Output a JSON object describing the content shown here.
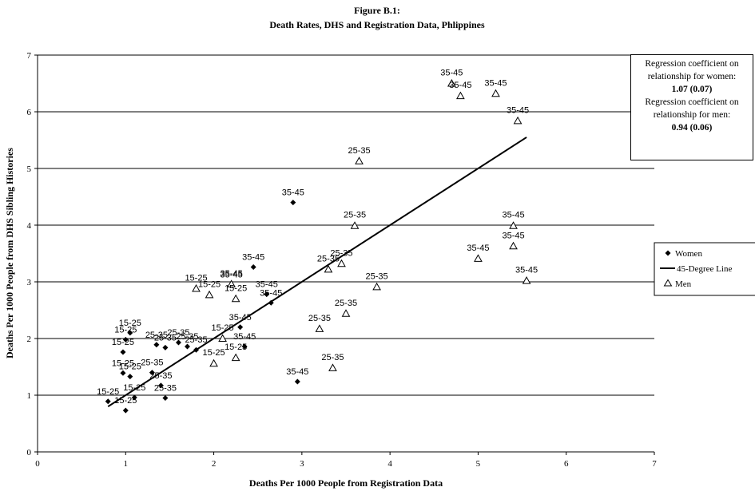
{
  "chart_data": {
    "type": "scatter",
    "title": "Figure B.1:",
    "subtitle": "Death Rates, DHS and Registration Data, Phlippines",
    "xlabel": "Deaths Per 1000 People from Registration Data",
    "ylabel": "Deaths Per 1000 People from DHS Sibling Histories",
    "xlim": [
      0,
      7
    ],
    "ylim": [
      0,
      7
    ],
    "xticks": [
      "0",
      "1",
      "2",
      "3",
      "4",
      "5",
      "6",
      "7"
    ],
    "yticks": [
      "0",
      "1",
      "2",
      "3",
      "4",
      "5",
      "6",
      "7"
    ],
    "grid": "horizontal",
    "legend_position": "right",
    "series": [
      {
        "name": "Women",
        "marker": "diamond",
        "color": "#000000",
        "points": [
          {
            "x": 0.8,
            "y": 0.89,
            "label": "15-25"
          },
          {
            "x": 1.0,
            "y": 0.73,
            "label": "15-25"
          },
          {
            "x": 1.1,
            "y": 0.96,
            "label": "15-25"
          },
          {
            "x": 0.97,
            "y": 1.39,
            "label": "15-25"
          },
          {
            "x": 1.05,
            "y": 1.33,
            "label": "15-25"
          },
          {
            "x": 0.97,
            "y": 1.76,
            "label": "15-25"
          },
          {
            "x": 1.0,
            "y": 1.98,
            "label": "15-25"
          },
          {
            "x": 1.05,
            "y": 2.1,
            "label": "15-25"
          },
          {
            "x": 1.3,
            "y": 1.4,
            "label": "25-35"
          },
          {
            "x": 1.4,
            "y": 1.17,
            "label": "25-35"
          },
          {
            "x": 1.45,
            "y": 0.95,
            "label": "25-35"
          },
          {
            "x": 1.35,
            "y": 1.89,
            "label": "25-35"
          },
          {
            "x": 1.45,
            "y": 1.84,
            "label": "25-35"
          },
          {
            "x": 1.6,
            "y": 1.93,
            "label": "25-35"
          },
          {
            "x": 1.7,
            "y": 1.86,
            "label": "25-35"
          },
          {
            "x": 1.8,
            "y": 1.8,
            "label": "25-35"
          },
          {
            "x": 2.2,
            "y": 2.95,
            "label": "35-45"
          },
          {
            "x": 2.45,
            "y": 3.26,
            "label": "35-45"
          },
          {
            "x": 2.6,
            "y": 2.78,
            "label": "35-45"
          },
          {
            "x": 2.65,
            "y": 2.63,
            "label": "35-45"
          },
          {
            "x": 2.3,
            "y": 2.2,
            "label": "35-45"
          },
          {
            "x": 2.35,
            "y": 1.86,
            "label": "35-45"
          },
          {
            "x": 2.9,
            "y": 4.4,
            "label": "35-45"
          },
          {
            "x": 2.95,
            "y": 1.24,
            "label": "35-45"
          }
        ]
      },
      {
        "name": "45-Degree Line",
        "type": "line",
        "color": "#000000",
        "x": [
          0.8,
          5.55
        ],
        "y": [
          0.8,
          5.55
        ]
      },
      {
        "name": "Men",
        "marker": "triangle",
        "color": "#000000",
        "points": [
          {
            "x": 1.8,
            "y": 2.88,
            "label": "15-25"
          },
          {
            "x": 1.95,
            "y": 2.77,
            "label": "15-25"
          },
          {
            "x": 2.0,
            "y": 1.56,
            "label": "15-25"
          },
          {
            "x": 2.1,
            "y": 2.0,
            "label": "15-25"
          },
          {
            "x": 2.25,
            "y": 1.66,
            "label": "15-25"
          },
          {
            "x": 2.25,
            "y": 2.7,
            "label": "15-25"
          },
          {
            "x": 2.2,
            "y": 2.96,
            "label": "35-45"
          },
          {
            "x": 3.2,
            "y": 2.17,
            "label": "25-35"
          },
          {
            "x": 3.3,
            "y": 3.22,
            "label": "25-35"
          },
          {
            "x": 3.35,
            "y": 1.48,
            "label": "25-35"
          },
          {
            "x": 3.45,
            "y": 3.32,
            "label": "25-35"
          },
          {
            "x": 3.5,
            "y": 2.44,
            "label": "25-35"
          },
          {
            "x": 3.6,
            "y": 3.99,
            "label": "25-35"
          },
          {
            "x": 3.65,
            "y": 5.13,
            "label": "25-35"
          },
          {
            "x": 3.85,
            "y": 2.91,
            "label": "25-35"
          },
          {
            "x": 4.7,
            "y": 6.5,
            "label": "35-45"
          },
          {
            "x": 4.8,
            "y": 6.28,
            "label": "35-45"
          },
          {
            "x": 5.2,
            "y": 6.32,
            "label": "35-45"
          },
          {
            "x": 5.45,
            "y": 5.84,
            "label": "35-45"
          },
          {
            "x": 5.0,
            "y": 3.41,
            "label": "35-45"
          },
          {
            "x": 5.4,
            "y": 3.99,
            "label": "35-45"
          },
          {
            "x": 5.4,
            "y": 3.63,
            "label": "35-45"
          },
          {
            "x": 5.55,
            "y": 3.02,
            "label": "35-45"
          }
        ]
      }
    ],
    "annotation": {
      "line1": "Regression coefficient on",
      "line2": "relationship for women:",
      "line3": "1.07 (0.07)",
      "line4": "Regression coefficient on",
      "line5": "relationship for men:",
      "line6": "0.94 (0.06)"
    }
  }
}
